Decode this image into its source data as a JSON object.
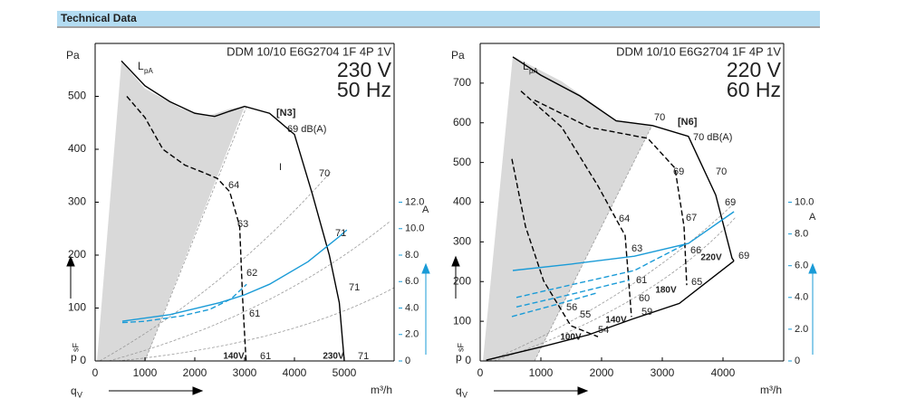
{
  "header": {
    "title": "Technical Data"
  },
  "chart_data": [
    {
      "type": "line",
      "title": "DDM 10/10 E6G2704 1F 4P 1V",
      "voltage": "230 V",
      "frequency": "50 Hz",
      "curve_id": "[N3]",
      "y_label": "Pa",
      "y_label_side": "p",
      "y_label_side_sub": "sF",
      "x_label": "q",
      "x_label_sub": "V",
      "x_unit": "m³/h",
      "y2_label": "A",
      "sound_label": "L",
      "sound_label_sub": "pA",
      "xlim": [
        0,
        6000
      ],
      "xticks": [
        0,
        1000,
        2000,
        3000,
        4000,
        5000
      ],
      "ylim": [
        0,
        600
      ],
      "yticks": [
        0,
        100,
        200,
        300,
        400,
        500
      ],
      "y2lim": [
        0,
        24
      ],
      "y2ticks": [
        0,
        {
          "value": 2,
          "label": "2.0"
        },
        {
          "value": 4,
          "label": "4.0"
        },
        {
          "value": 6,
          "label": "6.0"
        },
        {
          "value": 8,
          "label": "8.0"
        },
        {
          "value": 10,
          "label": "10.0"
        },
        {
          "value": 12,
          "label": "12.0"
        }
      ],
      "y2color": "#1a9bd7",
      "series": [
        {
          "name": "230V",
          "color": "#000000",
          "dashed": false,
          "x": [
            527,
            1000,
            1500,
            2000,
            2400,
            2700,
            3000,
            3500,
            4000,
            4360,
            4700,
            4900,
            5000
          ],
          "values": [
            567,
            520,
            490,
            468,
            462,
            472,
            481,
            468,
            428,
            315,
            200,
            110,
            0
          ]
        },
        {
          "name": "140V",
          "color": "#000000",
          "dashed": true,
          "x": [
            636,
            1000,
            1360,
            1800,
            2200,
            2450,
            2700,
            2900,
            2960,
            3030
          ],
          "values": [
            500,
            460,
            400,
            370,
            355,
            345,
            320,
            255,
            118,
            0
          ]
        },
        {
          "color": "#1a9bd7",
          "dashed": false,
          "axis": "y2",
          "x": [
            545,
            1500,
            2500,
            3000,
            3500,
            4270,
            4700,
            4900,
            5050
          ],
          "values": [
            3.0,
            3.5,
            4.4,
            5.0,
            5.8,
            7.5,
            8.8,
            9.4,
            9.9
          ]
        },
        {
          "color": "#1a9bd7",
          "dashed": true,
          "axis": "y2",
          "x": [
            545,
            1000,
            1730,
            2300,
            2730,
            3040
          ],
          "values": [
            2.9,
            3.0,
            3.4,
            3.9,
            4.7,
            5.8
          ]
        }
      ],
      "annotations": [
        "69 dB(A)",
        "70",
        "I",
        "64",
        "63",
        "62",
        "61",
        "71",
        "71",
        "61",
        "71"
      ]
    },
    {
      "type": "line",
      "title": "DDM 10/10 E6G2704 1F 4P 1V",
      "voltage": "220 V",
      "frequency": "60 Hz",
      "curve_id": "[N6]",
      "y_label": "Pa",
      "y_label_side": "p",
      "y_label_side_sub": "sF",
      "x_label": "q",
      "x_label_sub": "V",
      "x_unit": "m³/h",
      "y2_label": "A",
      "sound_label": "L",
      "sound_label_sub": "pA",
      "xlim": [
        0,
        5000
      ],
      "xticks": [
        0,
        1000,
        2000,
        3000,
        4000
      ],
      "ylim": [
        0,
        800
      ],
      "yticks": [
        0,
        100,
        200,
        300,
        400,
        500,
        600,
        700
      ],
      "y2lim": [
        0,
        20
      ],
      "y2ticks": [
        0,
        {
          "value": 2,
          "label": "2.0"
        },
        {
          "value": 4,
          "label": "4.0"
        },
        {
          "value": 6,
          "label": "6.0"
        },
        {
          "value": 8,
          "label": "8.0"
        },
        {
          "value": 10,
          "label": "10.0"
        }
      ],
      "y2color": "#1a9bd7",
      "series": [
        {
          "name": "220V",
          "color": "#000000",
          "dashed": false,
          "x": [
            537,
            1000,
            1640,
            2240,
            2840,
            3430,
            3880,
            4150,
            4180
          ],
          "values": [
            766,
            720,
            668,
            605,
            593,
            566,
            418,
            259,
            252
          ]
        },
        {
          "name": "180V",
          "color": "#000000",
          "dashed": true,
          "x": [
            896,
            1791,
            2761,
            3209,
            3358,
            3403
          ],
          "values": [
            657,
            589,
            561,
            486,
            339,
            191
          ]
        },
        {
          "name": "140V",
          "color": "#000000",
          "dashed": true,
          "x": [
            672,
            1343,
            1940,
            2388,
            2493
          ],
          "values": [
            680,
            589,
            441,
            316,
            111
          ]
        },
        {
          "name": "100V",
          "color": "#000000",
          "dashed": true,
          "x": [
            522,
            746,
            1045,
            1493,
            1940
          ],
          "values": [
            509,
            339,
            202,
            89,
            61
          ]
        },
        {
          "color": "#000000",
          "dashed": false,
          "x": [
            100,
            1000,
            1790,
            2500,
            3280,
            4180
          ],
          "values": [
            2,
            35,
            66,
            105,
            145,
            252
          ]
        },
        {
          "color": "#1a9bd7",
          "dashed": false,
          "axis": "y2",
          "x": [
            537,
            1500,
            2540,
            3430,
            4180
          ],
          "values": [
            5.7,
            6.1,
            6.6,
            7.4,
            9.4
          ]
        },
        {
          "color": "#1a9bd7",
          "dashed": true,
          "axis": "y2",
          "x": [
            597,
            1500,
            2540,
            3400
          ],
          "values": [
            4.0,
            4.8,
            5.7,
            7.4
          ]
        },
        {
          "color": "#1a9bd7",
          "dashed": true,
          "axis": "y2",
          "x": [
            597,
            1500,
            2460
          ],
          "values": [
            3.4,
            4.2,
            5.1
          ]
        },
        {
          "color": "#1a9bd7",
          "dashed": true,
          "axis": "y2",
          "x": [
            522,
            1200,
            1940
          ],
          "values": [
            2.8,
            3.5,
            4.3
          ]
        }
      ],
      "annotations": [
        "70",
        "70 dB(A)",
        "69",
        "70",
        "69",
        "69",
        "64",
        "67",
        "63",
        "66",
        "61",
        "65",
        "60",
        "59",
        "56",
        "55",
        "54"
      ]
    }
  ]
}
